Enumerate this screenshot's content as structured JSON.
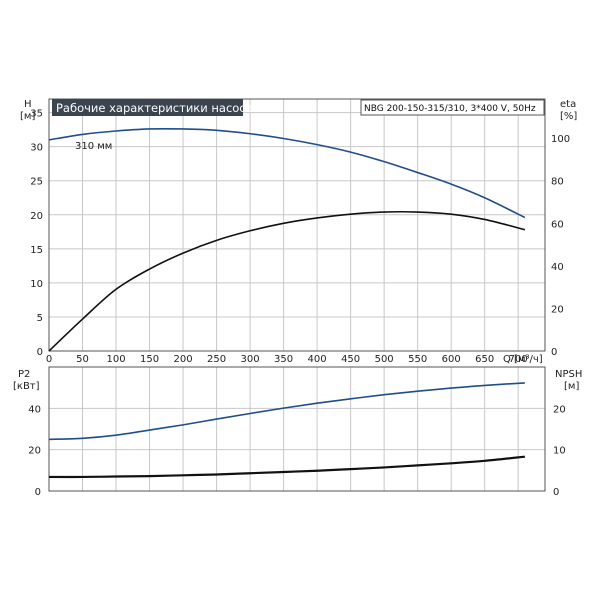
{
  "chart_data": [
    {
      "type": "line",
      "title": "Рабочие характеристики насоса",
      "subtitle": "NBG 200-150-315/310, 3*400 V, 50Hz",
      "xlabel": "Q [м³/ч]",
      "ylabel_left": [
        "H",
        "[м]"
      ],
      "ylabel_right": [
        "eta",
        "[%]"
      ],
      "xlim": [
        0,
        740
      ],
      "ylim_left": [
        0,
        37
      ],
      "ylim_right": [
        0,
        118.4
      ],
      "x_ticks": [
        0,
        50,
        100,
        150,
        200,
        250,
        300,
        350,
        400,
        450,
        500,
        550,
        600,
        650,
        700
      ],
      "y_ticks_left": [
        0,
        5,
        10,
        15,
        20,
        25,
        30,
        35
      ],
      "y_ticks_right": [
        0,
        20,
        40,
        60,
        80,
        100
      ],
      "grid": true,
      "curve_label": "310 мм",
      "series": [
        {
          "name": "310 мм",
          "axis": "left",
          "color": "#1f4e8c",
          "x": [
            0,
            50,
            100,
            150,
            200,
            250,
            300,
            350,
            400,
            450,
            500,
            550,
            600,
            650,
            710
          ],
          "y": [
            31.0,
            31.8,
            32.3,
            32.6,
            32.6,
            32.4,
            31.9,
            31.2,
            30.3,
            29.2,
            27.8,
            26.2,
            24.5,
            22.5,
            19.6
          ]
        },
        {
          "axis": "right",
          "color": "#111111",
          "x": [
            0,
            50,
            100,
            150,
            200,
            250,
            300,
            350,
            400,
            450,
            500,
            550,
            600,
            650,
            710
          ],
          "y": [
            0,
            15,
            29,
            38.5,
            46,
            52,
            56.5,
            60,
            62.5,
            64.3,
            65.3,
            65.3,
            64.3,
            61.8,
            57
          ]
        }
      ]
    },
    {
      "type": "line",
      "xlim": [
        0,
        740
      ],
      "ylim_left": [
        0,
        60
      ],
      "ylim_right": [
        0,
        30
      ],
      "ylabel_left": [
        "P2",
        "[кВт]"
      ],
      "ylabel_right": [
        "NPSH",
        "[м]"
      ],
      "y_ticks_left": [
        0,
        20,
        40
      ],
      "y_ticks_right": [
        0,
        10,
        20
      ],
      "grid": true,
      "series": [
        {
          "axis": "left",
          "color": "#1f4e8c",
          "x": [
            0,
            50,
            100,
            150,
            200,
            250,
            300,
            350,
            400,
            450,
            500,
            550,
            600,
            650,
            710
          ],
          "y": [
            25,
            25.5,
            27,
            29.5,
            32,
            34.8,
            37.5,
            40.1,
            42.5,
            44.6,
            46.6,
            48.3,
            49.8,
            51.1,
            52.3
          ]
        },
        {
          "axis": "right",
          "color": "#111111",
          "x": [
            0,
            50,
            100,
            150,
            200,
            250,
            300,
            350,
            400,
            450,
            500,
            550,
            600,
            650,
            710
          ],
          "y": [
            3.4,
            3.4,
            3.5,
            3.6,
            3.8,
            4.0,
            4.3,
            4.6,
            4.9,
            5.3,
            5.7,
            6.2,
            6.7,
            7.3,
            8.3
          ]
        }
      ]
    }
  ]
}
